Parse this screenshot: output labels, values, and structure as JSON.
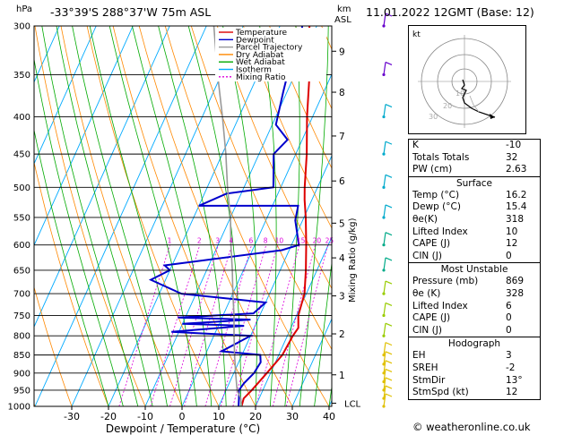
{
  "header": {
    "location": "-33°39'S  288°37'W  75m  ASL",
    "datetime": "11.01.2022  12GMT  (Base: 12)",
    "hpa_unit": "hPa",
    "km_unit": "km",
    "asl_unit": "ASL"
  },
  "chart_data": {
    "type": "line",
    "title": "-33°39'S  288°37'W  75m  ASL",
    "xlabel": "Dewpoint / Temperature (°C)",
    "ylabel": "hPa",
    "mixing_ratio_axis_label": "Mixing Ratio (g/kg)",
    "xlim": [
      -35,
      40
    ],
    "ylim": [
      1000,
      300
    ],
    "x_ticks": [
      -30,
      -20,
      -10,
      0,
      10,
      20,
      30,
      40
    ],
    "pressure_levels": [
      300,
      350,
      400,
      450,
      500,
      550,
      600,
      650,
      700,
      750,
      800,
      850,
      900,
      950,
      1000
    ],
    "km_ticks": [
      {
        "km": "1",
        "p": 905
      },
      {
        "km": "2",
        "p": 795
      },
      {
        "km": "3",
        "p": 705
      },
      {
        "km": "4",
        "p": 625
      },
      {
        "km": "5",
        "p": 560
      },
      {
        "km": "6",
        "p": 490
      },
      {
        "km": "7",
        "p": 425
      },
      {
        "km": "8",
        "p": 370
      },
      {
        "km": "9",
        "p": 325
      }
    ],
    "lcl_label": "LCL",
    "lcl_pressure": 990,
    "mixing_ratio_values": [
      1,
      2,
      3,
      4,
      6,
      8,
      10,
      15,
      20,
      25
    ],
    "legend": [
      {
        "name": "Temperature",
        "color": "#dd0000"
      },
      {
        "name": "Dewpoint",
        "color": "#0000cc"
      },
      {
        "name": "Parcel Trajectory",
        "color": "#999999"
      },
      {
        "name": "Dry Adiabat",
        "color": "#ff8800"
      },
      {
        "name": "Wet Adiabat",
        "color": "#00aa00"
      },
      {
        "name": "Isotherm",
        "color": "#00aaff"
      },
      {
        "name": "Mixing Ratio",
        "color": "#dd00dd"
      }
    ],
    "series": [
      {
        "name": "Temperature",
        "color": "#dd0000",
        "points": [
          [
            16.2,
            1000
          ],
          [
            15.8,
            975
          ],
          [
            17.0,
            950
          ],
          [
            19.0,
            900
          ],
          [
            21.0,
            850
          ],
          [
            21.5,
            800
          ],
          [
            22.0,
            780
          ],
          [
            20.5,
            750
          ],
          [
            19.5,
            700
          ],
          [
            17.0,
            650
          ],
          [
            14.0,
            600
          ],
          [
            10.5,
            550
          ],
          [
            8.0,
            520
          ],
          [
            6.5,
            500
          ],
          [
            3.0,
            450
          ],
          [
            -1.5,
            400
          ],
          [
            -6.0,
            350
          ],
          [
            -12.0,
            300
          ]
        ]
      },
      {
        "name": "Dewpoint",
        "color": "#0000cc",
        "points": [
          [
            15.4,
            1000
          ],
          [
            14.5,
            975
          ],
          [
            13.5,
            950
          ],
          [
            14.0,
            930
          ],
          [
            15.5,
            900
          ],
          [
            16.0,
            870
          ],
          [
            15.0,
            850
          ],
          [
            4.0,
            840
          ],
          [
            10.0,
            800
          ],
          [
            -12.0,
            790
          ],
          [
            7.0,
            775
          ],
          [
            -10.0,
            770
          ],
          [
            8.0,
            760
          ],
          [
            -12.0,
            755
          ],
          [
            8.0,
            745
          ],
          [
            10.0,
            720
          ],
          [
            -14.0,
            700
          ],
          [
            -24.0,
            670
          ],
          [
            -20.0,
            650
          ],
          [
            -22.0,
            640
          ],
          [
            8.0,
            610
          ],
          [
            12.0,
            600
          ],
          [
            8.0,
            555
          ],
          [
            7.0,
            530
          ],
          [
            -20.0,
            530
          ],
          [
            -14.0,
            510
          ],
          [
            -2.0,
            500
          ],
          [
            -6.0,
            450
          ],
          [
            -4.0,
            430
          ],
          [
            -9.0,
            410
          ],
          [
            -11.0,
            370
          ],
          [
            -12.0,
            350
          ],
          [
            -11.0,
            330
          ],
          [
            -16.0,
            325
          ],
          [
            -12.0,
            315
          ],
          [
            -14.0,
            300
          ]
        ]
      },
      {
        "name": "Parcel Trajectory",
        "color": "#999999",
        "points": [
          [
            16.2,
            1000
          ],
          [
            15.0,
            975
          ],
          [
            13.0,
            950
          ],
          [
            10.5,
            900
          ],
          [
            8.0,
            850
          ],
          [
            5.5,
            800
          ],
          [
            3.0,
            750
          ],
          [
            0.0,
            700
          ],
          [
            -3.0,
            650
          ],
          [
            -6.5,
            600
          ],
          [
            -10.0,
            550
          ],
          [
            -14.5,
            500
          ],
          [
            -19.0,
            450
          ],
          [
            -24.5,
            400
          ],
          [
            -31.0,
            350
          ],
          [
            -38.0,
            300
          ]
        ]
      }
    ],
    "wind_barbs_note": "wind barbs drawn on right axis",
    "hodograph_rings": [
      "10",
      "20",
      "30"
    ],
    "hodograph_unit": "kt"
  },
  "indices": {
    "rows": [
      {
        "label": "K",
        "value": "-10"
      },
      {
        "label": "Totals Totals",
        "value": "32"
      },
      {
        "label": "PW (cm)",
        "value": "2.63"
      }
    ]
  },
  "surface": {
    "title": "Surface",
    "rows": [
      {
        "label": "Temp (°C)",
        "value": "16.2"
      },
      {
        "label": "Dewp (°C)",
        "value": "15.4"
      },
      {
        "label": "θe(K)",
        "value": "318"
      },
      {
        "label": "Lifted Index",
        "value": "10"
      },
      {
        "label": "CAPE (J)",
        "value": "12"
      },
      {
        "label": "CIN (J)",
        "value": "0"
      }
    ]
  },
  "most_unstable": {
    "title": "Most Unstable",
    "rows": [
      {
        "label": "Pressure (mb)",
        "value": "869"
      },
      {
        "label": "θe (K)",
        "value": "328"
      },
      {
        "label": "Lifted Index",
        "value": "6"
      },
      {
        "label": "CAPE (J)",
        "value": "0"
      },
      {
        "label": "CIN (J)",
        "value": "0"
      }
    ]
  },
  "hodograph": {
    "title": "Hodograph",
    "rows": [
      {
        "label": "EH",
        "value": "3"
      },
      {
        "label": "SREH",
        "value": "-2"
      },
      {
        "label": "StmDir",
        "value": "13°"
      },
      {
        "label": "StmSpd (kt)",
        "value": "12"
      }
    ]
  },
  "footer": "© weatheronline.co.uk"
}
